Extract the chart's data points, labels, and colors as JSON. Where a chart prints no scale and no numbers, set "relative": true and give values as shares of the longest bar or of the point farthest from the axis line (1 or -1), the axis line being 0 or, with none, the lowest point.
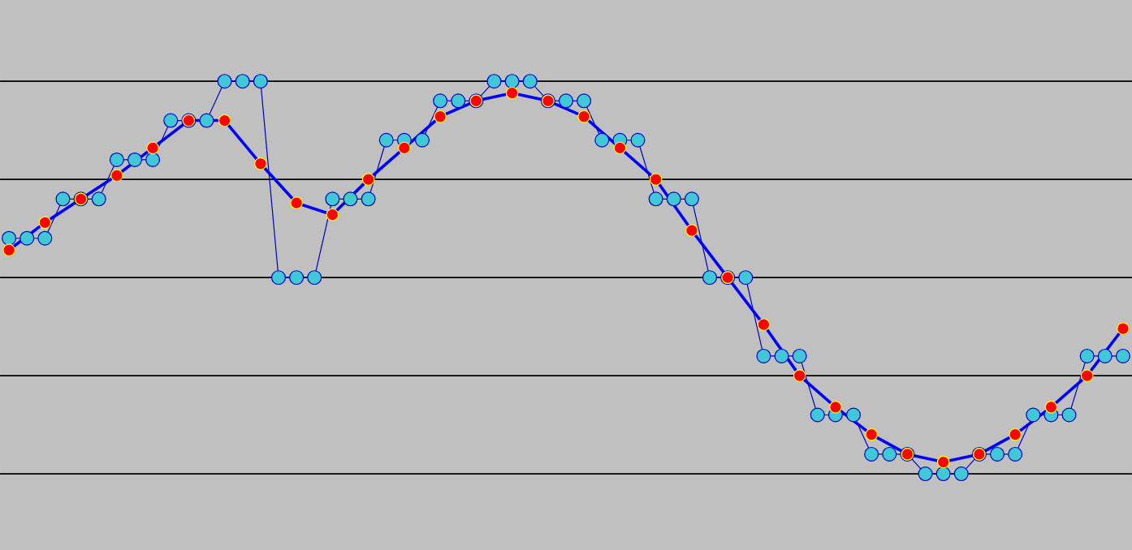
{
  "chart_data": {
    "type": "line",
    "relative": true,
    "grid": "y",
    "marker": "circle",
    "categories": [
      null,
      null,
      null,
      null,
      null,
      null,
      null,
      null,
      null,
      null,
      null,
      null,
      null,
      null,
      null,
      null,
      null,
      null,
      null,
      null,
      null,
      null,
      null,
      null,
      null,
      null,
      null,
      null,
      null,
      null,
      null,
      null,
      null,
      null,
      null,
      null,
      null,
      null,
      null,
      null,
      null,
      null,
      null,
      null,
      null,
      null,
      null,
      null,
      null,
      null,
      null,
      null,
      null,
      null,
      null,
      null,
      null,
      null,
      null,
      null,
      null,
      null,
      null
    ],
    "series": [
      {
        "color": "#0000c0",
        "values": [
          0.6,
          0.6,
          0.6,
          0.7,
          0.7,
          0.7,
          0.8,
          0.8,
          0.8,
          0.9,
          0.9,
          0.9,
          1.0,
          1.0,
          1.0,
          0.5,
          0.5,
          0.5,
          0.7,
          0.7,
          0.7,
          0.85,
          0.85,
          0.85,
          0.95,
          0.95,
          0.95,
          1.0,
          1.0,
          1.0,
          0.95,
          0.95,
          0.95,
          0.85,
          0.85,
          0.85,
          0.7,
          0.7,
          0.7,
          0.5,
          0.5,
          0.5,
          0.3,
          0.3,
          0.3,
          0.15,
          0.15,
          0.15,
          0.05,
          0.05,
          0.05,
          0,
          0,
          0,
          0.05,
          0.05,
          0.05,
          0.15,
          0.15,
          0.15,
          0.3,
          0.3,
          0.3
        ]
      },
      {
        "color": "#0000ff",
        "values": [
          0.57,
          null,
          0.64,
          null,
          0.7,
          null,
          0.76,
          null,
          0.83,
          null,
          0.9,
          null,
          0.9,
          null,
          0.79,
          null,
          0.69,
          null,
          0.66,
          null,
          0.75,
          null,
          0.83,
          null,
          0.91,
          null,
          0.95,
          null,
          0.97,
          null,
          0.95,
          null,
          0.91,
          null,
          0.83,
          null,
          0.75,
          null,
          0.62,
          null,
          0.5,
          null,
          0.38,
          null,
          0.25,
          null,
          0.17,
          null,
          0.1,
          null,
          0.05,
          null,
          0.03,
          null,
          0.05,
          null,
          0.1,
          null,
          0.17,
          null,
          0.25,
          null,
          0.37
        ]
      }
    ]
  }
}
